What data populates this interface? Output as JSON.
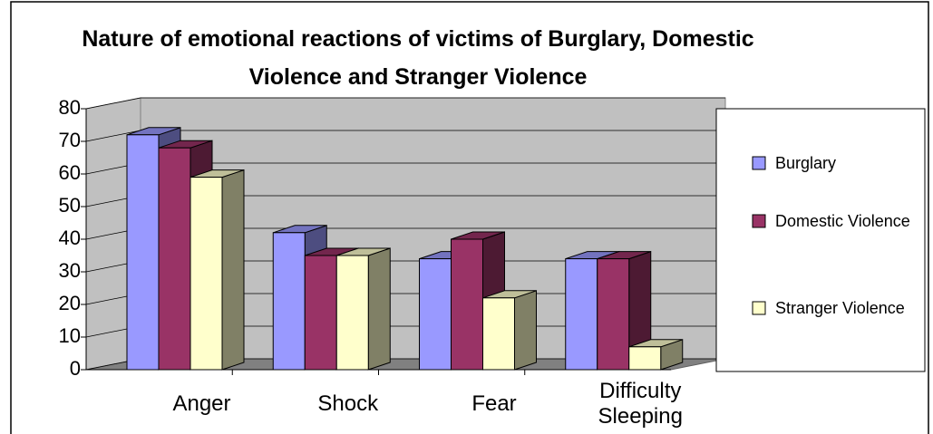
{
  "chart_data": {
    "type": "bar3d",
    "title": "Nature of emotional reactions of victims of Burglary, Domestic Violence and Stranger Violence",
    "categories": [
      "Anger",
      "Shock",
      "Fear",
      "Difficulty Sleeping"
    ],
    "series": [
      {
        "name": "Burglary",
        "color": "#9999ff",
        "values": [
          72,
          42,
          34,
          34
        ]
      },
      {
        "name": "Domestic Violence",
        "color": "#993366",
        "values": [
          68,
          35,
          40,
          34
        ]
      },
      {
        "name": "Stranger Violence",
        "color": "#ffffcc",
        "values": [
          59,
          35,
          22,
          7
        ]
      }
    ],
    "ylim": [
      0,
      80
    ],
    "yticks": [
      0,
      10,
      20,
      30,
      40,
      50,
      60,
      70,
      80
    ],
    "grid": true,
    "legend": "right"
  }
}
